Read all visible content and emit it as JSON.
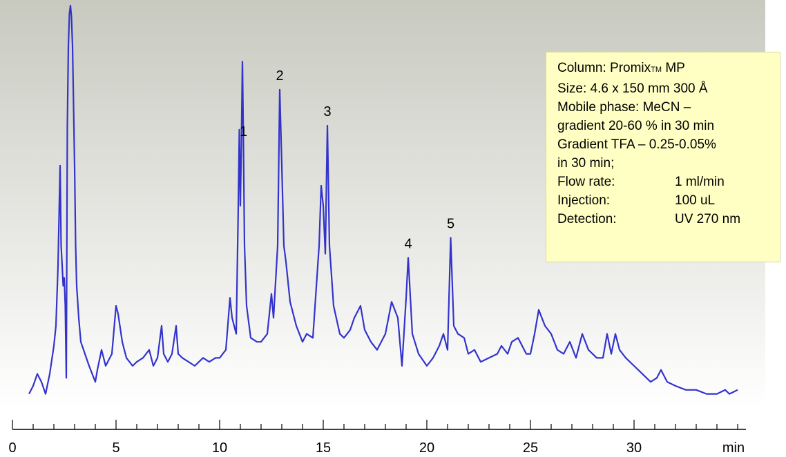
{
  "chart_data": {
    "type": "line",
    "xlabel": "min",
    "ylabel": "",
    "title": "",
    "xlim": [
      0,
      35
    ],
    "ylim": [
      0,
      1
    ],
    "grid": false,
    "x_ticks": [
      0,
      5,
      10,
      15,
      20,
      25,
      30
    ],
    "minor_tick_step": 1,
    "line_color": "#3333cc",
    "series": [
      {
        "x": [
          0.8,
          1.0,
          1.2,
          1.4,
          1.6,
          1.8,
          2.0,
          2.1,
          2.2,
          2.3,
          2.35,
          2.4,
          2.45,
          2.5,
          2.55,
          2.6,
          2.65,
          2.7,
          2.75,
          2.8,
          2.85,
          2.9,
          3.0,
          3.05,
          3.1,
          3.2,
          3.3,
          3.5,
          3.7,
          4.0,
          4.1,
          4.3,
          4.5,
          4.8,
          5.0,
          5.1,
          5.3,
          5.5,
          5.8,
          6.0,
          6.3,
          6.6,
          6.8,
          7.0,
          7.2,
          7.3,
          7.5,
          7.7,
          7.9,
          8.0,
          8.2,
          8.5,
          8.8,
          9.0,
          9.2,
          9.5,
          9.8,
          10.0,
          10.3,
          10.5,
          10.6,
          10.8,
          10.9,
          10.95,
          11.0,
          11.05,
          11.1,
          11.15,
          11.2,
          11.3,
          11.5,
          11.8,
          12.0,
          12.3,
          12.5,
          12.6,
          12.8,
          12.9,
          13.0,
          13.1,
          13.2,
          13.4,
          13.7,
          14.0,
          14.2,
          14.5,
          14.8,
          14.9,
          15.0,
          15.1,
          15.2,
          15.3,
          15.5,
          15.8,
          16.0,
          16.3,
          16.5,
          16.8,
          17.0,
          17.3,
          17.6,
          18.0,
          18.3,
          18.6,
          18.8,
          19.0,
          19.1,
          19.3,
          19.6,
          20.0,
          20.3,
          20.6,
          20.8,
          21.0,
          21.15,
          21.3,
          21.5,
          21.8,
          22.0,
          22.3,
          22.6,
          23.0,
          23.4,
          23.6,
          23.9,
          24.1,
          24.4,
          24.8,
          25.0,
          25.2,
          25.4,
          25.7,
          26.0,
          26.3,
          26.6,
          26.9,
          27.2,
          27.5,
          27.8,
          28.2,
          28.5,
          28.7,
          28.9,
          29.1,
          29.3,
          29.6,
          30.0,
          30.4,
          30.8,
          31.1,
          31.3,
          31.6,
          32.0,
          32.5,
          33.0,
          33.5,
          34.0,
          34.4,
          34.6,
          34.8,
          35.0
        ],
        "y": [
          0.03,
          0.05,
          0.08,
          0.06,
          0.03,
          0.08,
          0.15,
          0.2,
          0.35,
          0.6,
          0.4,
          0.35,
          0.3,
          0.32,
          0.25,
          0.07,
          0.7,
          0.9,
          0.98,
          1.0,
          0.97,
          0.9,
          0.6,
          0.4,
          0.3,
          0.22,
          0.16,
          0.13,
          0.1,
          0.06,
          0.09,
          0.14,
          0.1,
          0.13,
          0.25,
          0.23,
          0.16,
          0.12,
          0.1,
          0.11,
          0.12,
          0.14,
          0.1,
          0.12,
          0.2,
          0.13,
          0.11,
          0.13,
          0.2,
          0.13,
          0.12,
          0.11,
          0.1,
          0.11,
          0.12,
          0.11,
          0.12,
          0.12,
          0.14,
          0.27,
          0.22,
          0.18,
          0.5,
          0.69,
          0.5,
          0.66,
          0.86,
          0.65,
          0.4,
          0.25,
          0.17,
          0.16,
          0.16,
          0.18,
          0.28,
          0.22,
          0.4,
          0.79,
          0.6,
          0.4,
          0.36,
          0.26,
          0.2,
          0.16,
          0.18,
          0.17,
          0.4,
          0.55,
          0.5,
          0.38,
          0.7,
          0.4,
          0.25,
          0.18,
          0.17,
          0.19,
          0.22,
          0.25,
          0.19,
          0.16,
          0.14,
          0.18,
          0.26,
          0.22,
          0.1,
          0.27,
          0.37,
          0.18,
          0.13,
          0.1,
          0.12,
          0.15,
          0.18,
          0.14,
          0.42,
          0.2,
          0.18,
          0.17,
          0.13,
          0.14,
          0.11,
          0.12,
          0.13,
          0.15,
          0.13,
          0.16,
          0.17,
          0.13,
          0.13,
          0.18,
          0.24,
          0.2,
          0.18,
          0.14,
          0.13,
          0.16,
          0.12,
          0.18,
          0.14,
          0.12,
          0.12,
          0.18,
          0.13,
          0.18,
          0.14,
          0.12,
          0.1,
          0.08,
          0.06,
          0.07,
          0.09,
          0.06,
          0.05,
          0.04,
          0.04,
          0.03,
          0.03,
          0.04,
          0.03,
          0.035,
          0.04
        ]
      }
    ],
    "peak_labels": [
      {
        "label": "1",
        "x": 11.15
      },
      {
        "label": "2",
        "x": 12.9
      },
      {
        "label": "3",
        "x": 15.2
      },
      {
        "label": "4",
        "x": 19.1
      },
      {
        "label": "5",
        "x": 21.15
      }
    ]
  },
  "info": {
    "line1_prefix": "Column: Promix",
    "line1_tm": "TM",
    "line1_suffix": " MP",
    "line2": "Size: 4.6 x 150 mm 300 Å",
    "line3": "Mobile phase: MeCN –",
    "line4": "gradient 20-60 %  in 30 min",
    "line5": "Gradient TFA – 0.25-0.05%",
    "line6": "in 30 min;",
    "rows": [
      {
        "label": "Flow rate:",
        "value": "1 ml/min"
      },
      {
        "label": "Injection:",
        "value": "100 uL"
      },
      {
        "label": "Detection:",
        "value": "UV 270 nm"
      }
    ]
  }
}
